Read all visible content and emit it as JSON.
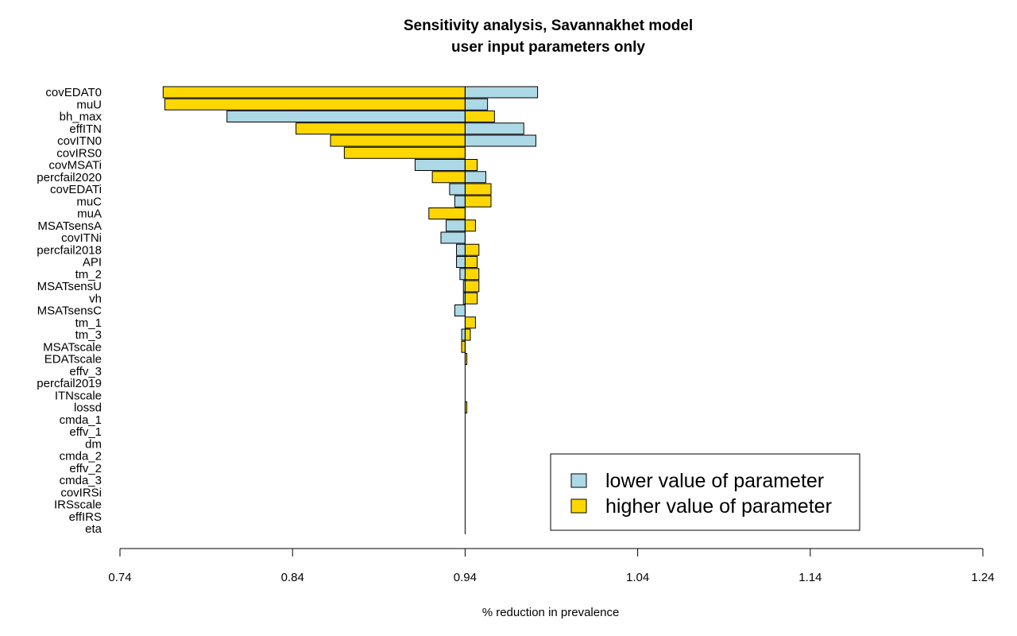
{
  "chart_data": {
    "type": "bar",
    "orientation": "horizontal",
    "title": "Sensitivity analysis, Savannakhet model",
    "subtitle": "user input parameters only",
    "xlabel": "% reduction in prevalence",
    "xlim": [
      0.74,
      1.24
    ],
    "xticks": [
      "0.74",
      "0.84",
      "0.94",
      "1.04",
      "1.14",
      "1.24"
    ],
    "baseline": 0.94,
    "colors": {
      "lower": "#add8e6",
      "higher": "#ffd700"
    },
    "categories": [
      "covEDAT0",
      "muU",
      "bh_max",
      "effITN",
      "covITN0",
      "covIRS0",
      "covMSATi",
      "percfail2020",
      "covEDATi",
      "muC",
      "muA",
      "MSATsensA",
      "covITNi",
      "percfail2018",
      "API",
      "tm_2",
      "MSATsensU",
      "vh",
      "MSATsensC",
      "tm_1",
      "tm_3",
      "MSATscale",
      "EDATscale",
      "effv_3",
      "percfail2019",
      "ITNscale",
      "lossd",
      "cmda_1",
      "effv_1",
      "dm",
      "cmda_2",
      "effv_2",
      "cmda_3",
      "covIRSi",
      "IRSscale",
      "effIRS",
      "eta"
    ],
    "series": [
      {
        "name": "lower value of parameter",
        "values": [
          0.982,
          0.953,
          0.802,
          0.974,
          0.981,
          0.94,
          0.911,
          0.952,
          0.931,
          0.934,
          0.94,
          0.929,
          0.926,
          0.935,
          0.935,
          0.937,
          0.939,
          0.939,
          0.934,
          0.94,
          0.938,
          0.94,
          0.94,
          0.94,
          0.94,
          0.94,
          0.94,
          0.94,
          0.94,
          0.94,
          0.94,
          0.94,
          0.94,
          0.94,
          0.94,
          0.94,
          0.94
        ]
      },
      {
        "name": "higher value of parameter",
        "values": [
          0.765,
          0.766,
          0.957,
          0.842,
          0.862,
          0.87,
          0.947,
          0.921,
          0.955,
          0.955,
          0.919,
          0.946,
          0.94,
          0.948,
          0.947,
          0.948,
          0.948,
          0.947,
          0.94,
          0.946,
          0.943,
          0.938,
          0.941,
          0.94,
          0.94,
          0.94,
          0.941,
          0.94,
          0.94,
          0.94,
          0.94,
          0.94,
          0.94,
          0.94,
          0.94,
          0.94,
          0.94
        ]
      }
    ],
    "legend_position": "bottom-right"
  }
}
